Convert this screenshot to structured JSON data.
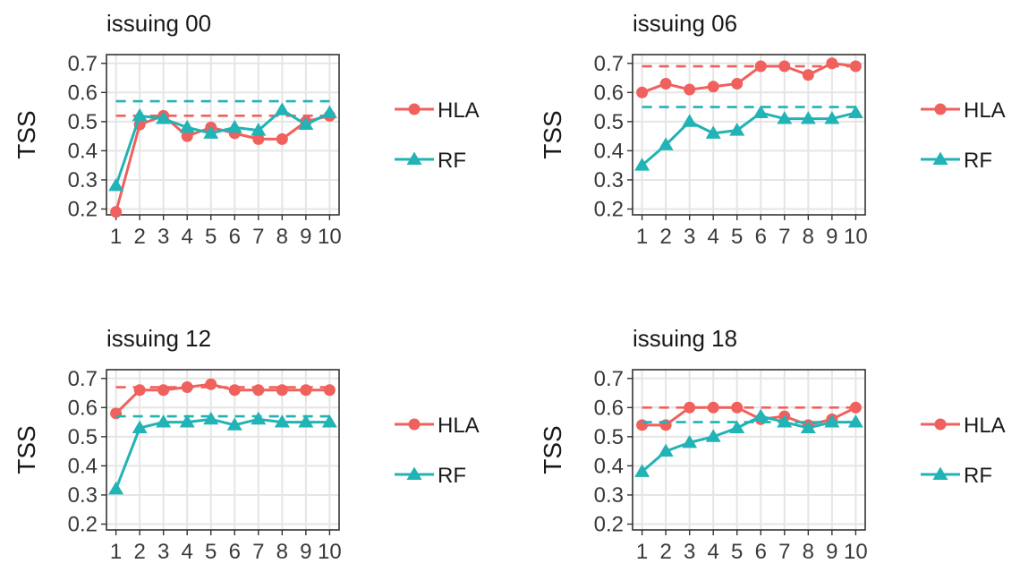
{
  "colors": {
    "HLA": "#F0605D",
    "RF": "#21B3B5",
    "grid": "#E5E5E5",
    "frame": "#333333"
  },
  "legend": {
    "items": [
      {
        "label": "HLA",
        "marker": "circle"
      },
      {
        "label": "RF",
        "marker": "triangle"
      }
    ],
    "placement": "right"
  },
  "chart_data": [
    {
      "type": "line",
      "title": "issuing 00",
      "ylabel": "TSS",
      "xlabel": "",
      "x": [
        1,
        2,
        3,
        4,
        5,
        6,
        7,
        8,
        9,
        10
      ],
      "xticks": [
        "1",
        "2",
        "3",
        "4",
        "5",
        "6",
        "7",
        "8",
        "9",
        "10"
      ],
      "yticks": [
        "0.2",
        "0.3",
        "0.4",
        "0.5",
        "0.6",
        "0.7"
      ],
      "ylim": [
        0.18,
        0.73
      ],
      "grid": true,
      "series": [
        {
          "name": "HLA",
          "values": [
            0.19,
            0.49,
            0.52,
            0.45,
            0.48,
            0.46,
            0.44,
            0.44,
            0.5,
            0.52
          ],
          "reference": 0.52
        },
        {
          "name": "RF",
          "values": [
            0.28,
            0.52,
            0.51,
            0.48,
            0.46,
            0.48,
            0.47,
            0.54,
            0.49,
            0.53
          ],
          "reference": 0.57
        }
      ]
    },
    {
      "type": "line",
      "title": "issuing 06",
      "ylabel": "TSS",
      "xlabel": "",
      "x": [
        1,
        2,
        3,
        4,
        5,
        6,
        7,
        8,
        9,
        10
      ],
      "xticks": [
        "1",
        "2",
        "3",
        "4",
        "5",
        "6",
        "7",
        "8",
        "9",
        "10"
      ],
      "yticks": [
        "0.2",
        "0.3",
        "0.4",
        "0.5",
        "0.6",
        "0.7"
      ],
      "ylim": [
        0.18,
        0.73
      ],
      "grid": true,
      "series": [
        {
          "name": "HLA",
          "values": [
            0.6,
            0.63,
            0.61,
            0.62,
            0.63,
            0.69,
            0.69,
            0.66,
            0.7,
            0.69
          ],
          "reference": 0.69
        },
        {
          "name": "RF",
          "values": [
            0.35,
            0.42,
            0.5,
            0.46,
            0.47,
            0.53,
            0.51,
            0.51,
            0.51,
            0.53
          ],
          "reference": 0.55
        }
      ]
    },
    {
      "type": "line",
      "title": "issuing 12",
      "ylabel": "TSS",
      "xlabel": "",
      "x": [
        1,
        2,
        3,
        4,
        5,
        6,
        7,
        8,
        9,
        10
      ],
      "xticks": [
        "1",
        "2",
        "3",
        "4",
        "5",
        "6",
        "7",
        "8",
        "9",
        "10"
      ],
      "yticks": [
        "0.2",
        "0.3",
        "0.4",
        "0.5",
        "0.6",
        "0.7"
      ],
      "ylim": [
        0.18,
        0.73
      ],
      "grid": true,
      "series": [
        {
          "name": "HLA",
          "values": [
            0.58,
            0.66,
            0.66,
            0.67,
            0.68,
            0.66,
            0.66,
            0.66,
            0.66,
            0.66
          ],
          "reference": 0.67
        },
        {
          "name": "RF",
          "values": [
            0.32,
            0.53,
            0.55,
            0.55,
            0.56,
            0.54,
            0.56,
            0.55,
            0.55,
            0.55
          ],
          "reference": 0.57
        }
      ]
    },
    {
      "type": "line",
      "title": "issuing 18",
      "ylabel": "TSS",
      "xlabel": "",
      "x": [
        1,
        2,
        3,
        4,
        5,
        6,
        7,
        8,
        9,
        10
      ],
      "xticks": [
        "1",
        "2",
        "3",
        "4",
        "5",
        "6",
        "7",
        "8",
        "9",
        "10"
      ],
      "yticks": [
        "0.2",
        "0.3",
        "0.4",
        "0.5",
        "0.6",
        "0.7"
      ],
      "ylim": [
        0.18,
        0.73
      ],
      "grid": true,
      "series": [
        {
          "name": "HLA",
          "values": [
            0.54,
            0.54,
            0.6,
            0.6,
            0.6,
            0.56,
            0.57,
            0.54,
            0.56,
            0.6
          ],
          "reference": 0.6
        },
        {
          "name": "RF",
          "values": [
            0.38,
            0.45,
            0.48,
            0.5,
            0.53,
            0.57,
            0.55,
            0.53,
            0.55,
            0.55
          ],
          "reference": 0.55
        }
      ]
    }
  ]
}
